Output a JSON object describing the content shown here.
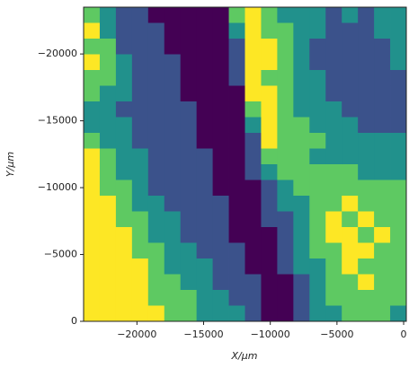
{
  "chart_data": {
    "type": "heatmap",
    "x_label": "X/μm",
    "y_label": "Y/μm",
    "xlim": [
      -24000,
      200
    ],
    "ylim": [
      0,
      -23500
    ],
    "xticks": [
      {
        "value": -20000,
        "label": "−20000"
      },
      {
        "value": -15000,
        "label": "−15000"
      },
      {
        "value": -10000,
        "label": "−10000"
      },
      {
        "value": -5000,
        "label": "−5000"
      },
      0
    ],
    "yticks": [
      {
        "value": 0,
        "label": "0"
      },
      {
        "value": -5000,
        "label": "−5000"
      },
      {
        "value": -10000,
        "label": "−10000"
      },
      {
        "value": -15000,
        "label": "−15000"
      },
      {
        "value": -20000,
        "label": "−20000"
      }
    ],
    "colorscale": [
      "#440154",
      "#3b528b",
      "#21918c",
      "#5ec962",
      "#fde725"
    ],
    "vlim": [
      0,
      4
    ],
    "values": [
      [
        3,
        2,
        1,
        1,
        0,
        0,
        0,
        0,
        0,
        3,
        4,
        3,
        2,
        2,
        2,
        1,
        2,
        1,
        2,
        2
      ],
      [
        4,
        2,
        1,
        1,
        1,
        0,
        0,
        0,
        0,
        2,
        4,
        3,
        3,
        2,
        2,
        1,
        1,
        1,
        2,
        2
      ],
      [
        3,
        3,
        1,
        1,
        1,
        0,
        0,
        0,
        0,
        1,
        4,
        4,
        3,
        2,
        1,
        1,
        1,
        1,
        1,
        2
      ],
      [
        4,
        3,
        2,
        1,
        1,
        1,
        0,
        0,
        0,
        1,
        4,
        4,
        3,
        2,
        1,
        1,
        1,
        1,
        1,
        2
      ],
      [
        3,
        3,
        2,
        1,
        1,
        1,
        0,
        0,
        0,
        1,
        4,
        3,
        3,
        2,
        2,
        1,
        1,
        1,
        1,
        1
      ],
      [
        3,
        2,
        2,
        1,
        1,
        1,
        0,
        0,
        0,
        0,
        4,
        4,
        3,
        2,
        2,
        1,
        1,
        1,
        1,
        1
      ],
      [
        2,
        2,
        1,
        1,
        1,
        1,
        1,
        0,
        0,
        0,
        3,
        4,
        3,
        2,
        2,
        2,
        1,
        1,
        1,
        1
      ],
      [
        2,
        2,
        2,
        1,
        1,
        1,
        1,
        0,
        0,
        0,
        2,
        4,
        3,
        3,
        2,
        2,
        2,
        1,
        1,
        1
      ],
      [
        3,
        2,
        2,
        1,
        1,
        1,
        1,
        0,
        0,
        0,
        1,
        4,
        3,
        3,
        3,
        2,
        2,
        2,
        2,
        2
      ],
      [
        4,
        3,
        2,
        2,
        1,
        1,
        1,
        1,
        0,
        0,
        1,
        3,
        3,
        3,
        2,
        2,
        2,
        2,
        2,
        2
      ],
      [
        4,
        3,
        2,
        2,
        1,
        1,
        1,
        1,
        0,
        0,
        1,
        2,
        3,
        3,
        3,
        3,
        3,
        2,
        2,
        2
      ],
      [
        4,
        3,
        3,
        2,
        1,
        1,
        1,
        1,
        0,
        0,
        0,
        1,
        2,
        3,
        3,
        3,
        3,
        3,
        3,
        3
      ],
      [
        4,
        4,
        3,
        2,
        2,
        1,
        1,
        1,
        1,
        0,
        0,
        1,
        2,
        2,
        3,
        3,
        4,
        3,
        3,
        3
      ],
      [
        4,
        4,
        3,
        3,
        2,
        2,
        1,
        1,
        1,
        0,
        0,
        1,
        1,
        2,
        3,
        4,
        3,
        4,
        3,
        3
      ],
      [
        4,
        4,
        4,
        3,
        2,
        2,
        1,
        1,
        1,
        0,
        0,
        0,
        1,
        2,
        3,
        4,
        4,
        3,
        4,
        3
      ],
      [
        4,
        4,
        4,
        3,
        3,
        2,
        2,
        1,
        1,
        1,
        0,
        0,
        1,
        2,
        3,
        3,
        4,
        4,
        3,
        3
      ],
      [
        4,
        4,
        4,
        4,
        3,
        2,
        2,
        2,
        1,
        1,
        0,
        0,
        1,
        2,
        2,
        3,
        4,
        3,
        3,
        3
      ],
      [
        4,
        4,
        4,
        4,
        3,
        3,
        2,
        2,
        1,
        1,
        1,
        0,
        0,
        1,
        2,
        3,
        3,
        4,
        3,
        3
      ],
      [
        4,
        4,
        4,
        4,
        3,
        3,
        3,
        2,
        2,
        1,
        1,
        0,
        0,
        1,
        2,
        3,
        3,
        3,
        3,
        3
      ],
      [
        4,
        4,
        4,
        4,
        4,
        3,
        3,
        2,
        2,
        2,
        1,
        0,
        0,
        1,
        2,
        2,
        3,
        3,
        3,
        2
      ]
    ]
  }
}
